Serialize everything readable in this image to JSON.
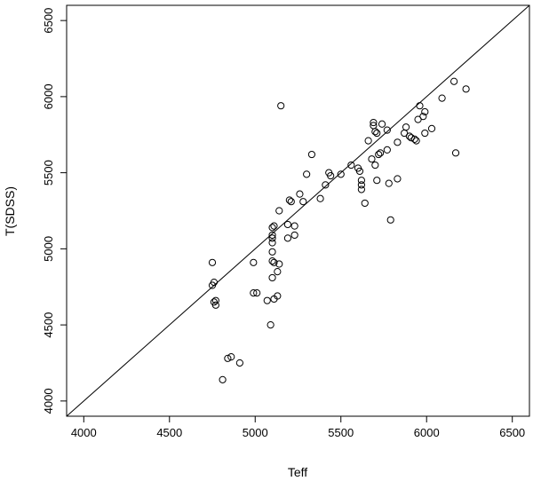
{
  "chart_data": {
    "type": "scatter",
    "title": "",
    "xlabel": "Teff",
    "ylabel": "T(SDSS)",
    "xlim": [
      3900,
      6600
    ],
    "ylim": [
      3900,
      6600
    ],
    "x_ticks": [
      4000,
      4500,
      5000,
      5500,
      6000,
      6500
    ],
    "y_ticks": [
      4000,
      4500,
      5000,
      5500,
      6000,
      6500
    ],
    "x_tick_labels": [
      "4000",
      "4500",
      "5000",
      "5500",
      "6000",
      "6500"
    ],
    "y_tick_labels": [
      "4000",
      "4500",
      "5000",
      "5500",
      "6000",
      "6500"
    ],
    "reference_line": {
      "slope": 1,
      "intercept": 0
    },
    "grid": false,
    "marker": "open-circle",
    "points": [
      [
        4750,
        4910
      ],
      [
        4750,
        4760
      ],
      [
        4760,
        4780
      ],
      [
        4760,
        4650
      ],
      [
        4770,
        4660
      ],
      [
        4770,
        4630
      ],
      [
        4810,
        4140
      ],
      [
        4840,
        4280
      ],
      [
        4860,
        4290
      ],
      [
        4910,
        4250
      ],
      [
        4990,
        4910
      ],
      [
        4990,
        4710
      ],
      [
        5010,
        4710
      ],
      [
        5070,
        4660
      ],
      [
        5090,
        4500
      ],
      [
        5100,
        4810
      ],
      [
        5100,
        4920
      ],
      [
        5100,
        4980
      ],
      [
        5100,
        5040
      ],
      [
        5100,
        5070
      ],
      [
        5100,
        5090
      ],
      [
        5100,
        5140
      ],
      [
        5110,
        4910
      ],
      [
        5110,
        4670
      ],
      [
        5110,
        5150
      ],
      [
        5130,
        4850
      ],
      [
        5130,
        4690
      ],
      [
        5140,
        5250
      ],
      [
        5140,
        4900
      ],
      [
        5150,
        5940
      ],
      [
        5190,
        5160
      ],
      [
        5190,
        5070
      ],
      [
        5200,
        5320
      ],
      [
        5210,
        5310
      ],
      [
        5230,
        5150
      ],
      [
        5230,
        5090
      ],
      [
        5260,
        5360
      ],
      [
        5280,
        5310
      ],
      [
        5300,
        5490
      ],
      [
        5330,
        5620
      ],
      [
        5380,
        5330
      ],
      [
        5410,
        5420
      ],
      [
        5430,
        5500
      ],
      [
        5440,
        5480
      ],
      [
        5500,
        5490
      ],
      [
        5560,
        5550
      ],
      [
        5600,
        5530
      ],
      [
        5610,
        5510
      ],
      [
        5620,
        5450
      ],
      [
        5620,
        5420
      ],
      [
        5620,
        5390
      ],
      [
        5640,
        5300
      ],
      [
        5660,
        5710
      ],
      [
        5680,
        5590
      ],
      [
        5690,
        5830
      ],
      [
        5690,
        5810
      ],
      [
        5700,
        5550
      ],
      [
        5700,
        5770
      ],
      [
        5710,
        5760
      ],
      [
        5710,
        5450
      ],
      [
        5720,
        5620
      ],
      [
        5730,
        5630
      ],
      [
        5740,
        5820
      ],
      [
        5770,
        5650
      ],
      [
        5770,
        5780
      ],
      [
        5780,
        5430
      ],
      [
        5790,
        5190
      ],
      [
        5830,
        5460
      ],
      [
        5830,
        5700
      ],
      [
        5870,
        5760
      ],
      [
        5880,
        5800
      ],
      [
        5900,
        5740
      ],
      [
        5910,
        5730
      ],
      [
        5930,
        5720
      ],
      [
        5940,
        5710
      ],
      [
        5950,
        5850
      ],
      [
        5960,
        5940
      ],
      [
        5980,
        5870
      ],
      [
        5990,
        5900
      ],
      [
        5990,
        5760
      ],
      [
        6030,
        5790
      ],
      [
        6090,
        5990
      ],
      [
        6160,
        6100
      ],
      [
        6170,
        5630
      ],
      [
        6230,
        6050
      ]
    ]
  }
}
